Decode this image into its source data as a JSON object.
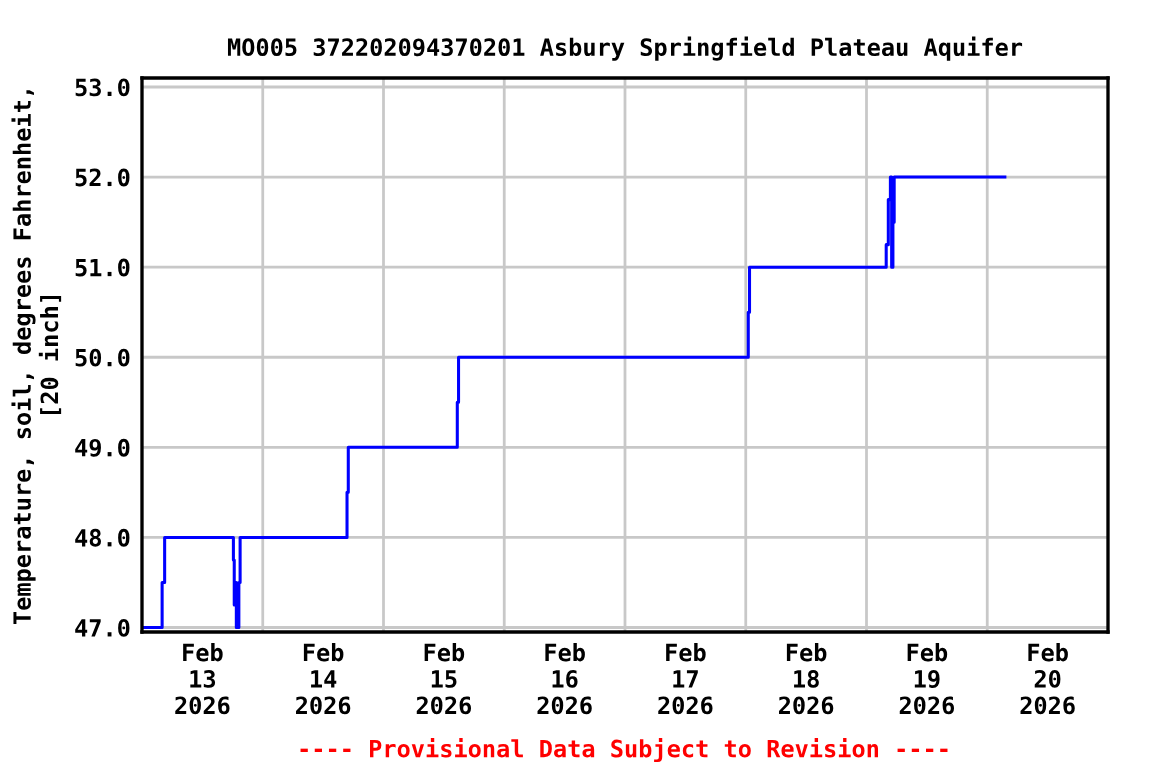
{
  "chart_data": {
    "type": "step",
    "title": "MO005 372202094370201 Asbury Springfield Plateau Aquifer",
    "ylabel": "Temperature, soil, degrees Fahrenheit,\n[20 inch]",
    "annotations": [
      "---- Provisional Data Subject to Revision ----"
    ],
    "series": [
      {
        "color": "#0000ff",
        "x": [
          "2026-02-13T00:00",
          "2026-02-13T04:00",
          "2026-02-13T04:30",
          "2026-02-13T18:10",
          "2026-02-13T18:20",
          "2026-02-13T18:30",
          "2026-02-13T18:45",
          "2026-02-13T19:15",
          "2026-02-13T19:30",
          "2026-02-14T16:45",
          "2026-02-14T17:00",
          "2026-02-15T14:40",
          "2026-02-15T14:55",
          "2026-02-18T00:30",
          "2026-02-18T00:45",
          "2026-02-19T03:55",
          "2026-02-19T04:20",
          "2026-02-19T04:45",
          "2026-02-19T05:00",
          "2026-02-19T05:15",
          "2026-02-19T05:30",
          "2026-02-20T03:30"
        ],
        "values": [
          47.0,
          47.5,
          48.0,
          47.75,
          47.25,
          47.5,
          47.0,
          47.5,
          48.0,
          48.5,
          49.0,
          49.5,
          50.0,
          50.5,
          51.0,
          51.25,
          51.75,
          52.0,
          51.0,
          51.5,
          52.0,
          52.0
        ]
      }
    ],
    "xlim": [
      "2026-02-13T00:00",
      "2026-02-21T00:00"
    ],
    "xticks": [
      {
        "value": "2026-02-13T12:00",
        "label": "Feb\n13\n2026"
      },
      {
        "value": "2026-02-14T00:00",
        "label": null
      },
      {
        "value": "2026-02-14T12:00",
        "label": "Feb\n14\n2026"
      },
      {
        "value": "2026-02-15T00:00",
        "label": null
      },
      {
        "value": "2026-02-15T12:00",
        "label": "Feb\n15\n2026"
      },
      {
        "value": "2026-02-16T00:00",
        "label": null
      },
      {
        "value": "2026-02-16T12:00",
        "label": "Feb\n16\n2026"
      },
      {
        "value": "2026-02-17T00:00",
        "label": null
      },
      {
        "value": "2026-02-17T12:00",
        "label": "Feb\n17\n2026"
      },
      {
        "value": "2026-02-18T00:00",
        "label": null
      },
      {
        "value": "2026-02-18T12:00",
        "label": "Feb\n18\n2026"
      },
      {
        "value": "2026-02-19T00:00",
        "label": null
      },
      {
        "value": "2026-02-19T12:00",
        "label": "Feb\n19\n2026"
      },
      {
        "value": "2026-02-20T00:00",
        "label": null
      },
      {
        "value": "2026-02-20T12:00",
        "label": "Feb\n20\n2026"
      }
    ],
    "ylim": [
      46.95,
      53.1
    ],
    "yticks": [
      {
        "value": 47,
        "label": "47.0"
      },
      {
        "value": 48,
        "label": "48.0"
      },
      {
        "value": 49,
        "label": "49.0"
      },
      {
        "value": 50,
        "label": "50.0"
      },
      {
        "value": 51,
        "label": "51.0"
      },
      {
        "value": 52,
        "label": "52.0"
      },
      {
        "value": 53,
        "label": "53.0"
      }
    ],
    "grid": true
  }
}
